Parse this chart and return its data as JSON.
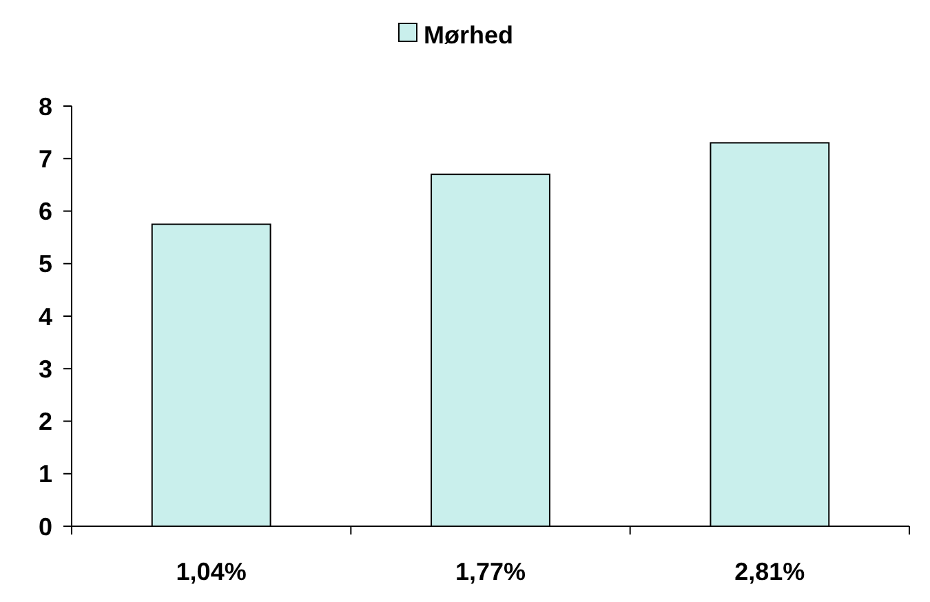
{
  "chart_data": {
    "type": "bar",
    "categories": [
      "1,04%",
      "1,77%",
      "2,81%"
    ],
    "series": [
      {
        "name": "Mørhed",
        "color": "#c9efec",
        "values": [
          5.75,
          6.7,
          7.3
        ]
      }
    ],
    "ylim": [
      0,
      8
    ],
    "yticks": [
      0,
      1,
      2,
      3,
      4,
      5,
      6,
      7,
      8
    ],
    "grid": false,
    "legend": "top"
  }
}
